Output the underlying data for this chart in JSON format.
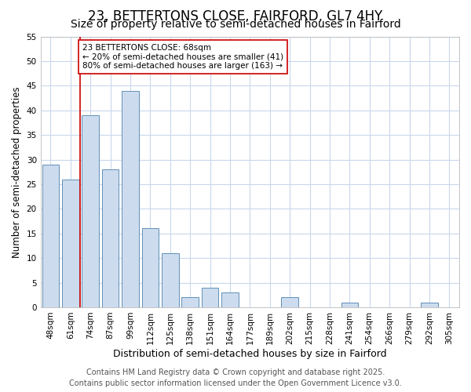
{
  "title": "23, BETTERTONS CLOSE, FAIRFORD, GL7 4HY",
  "subtitle": "Size of property relative to semi-detached houses in Fairford",
  "xlabel": "Distribution of semi-detached houses by size in Fairford",
  "ylabel": "Number of semi-detached properties",
  "categories": [
    "48sqm",
    "61sqm",
    "74sqm",
    "87sqm",
    "99sqm",
    "112sqm",
    "125sqm",
    "138sqm",
    "151sqm",
    "164sqm",
    "177sqm",
    "189sqm",
    "202sqm",
    "215sqm",
    "228sqm",
    "241sqm",
    "254sqm",
    "266sqm",
    "279sqm",
    "292sqm",
    "305sqm"
  ],
  "values": [
    29,
    26,
    39,
    28,
    44,
    16,
    11,
    2,
    4,
    3,
    0,
    0,
    2,
    0,
    0,
    1,
    0,
    0,
    0,
    1,
    0
  ],
  "bar_color": "#ccdcee",
  "bar_edge_color": "#6090b8",
  "vline_color": "#cc0000",
  "vline_position": 1.5,
  "annotation_text": "23 BETTERTONS CLOSE: 68sqm\n← 20% of semi-detached houses are smaller (41)\n80% of semi-detached houses are larger (163) →",
  "annotation_box_facecolor": "#ffffff",
  "annotation_box_edgecolor": "#cc0000",
  "ylim": [
    0,
    55
  ],
  "yticks": [
    0,
    5,
    10,
    15,
    20,
    25,
    30,
    35,
    40,
    45,
    50,
    55
  ],
  "footnote": "Contains HM Land Registry data © Crown copyright and database right 2025.\nContains public sector information licensed under the Open Government Licence v3.0.",
  "fig_background": "#ffffff",
  "ax_background": "#ffffff",
  "grid_color": "#c8d8ec",
  "title_fontsize": 12,
  "subtitle_fontsize": 10,
  "xlabel_fontsize": 9,
  "ylabel_fontsize": 8.5,
  "tick_fontsize": 7.5,
  "annot_fontsize": 7.5,
  "footnote_fontsize": 7
}
